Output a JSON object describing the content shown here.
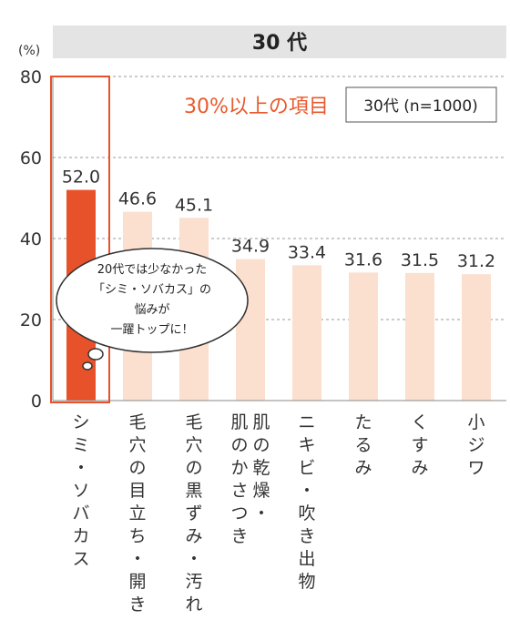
{
  "chart_data": {
    "type": "bar",
    "title": "30 代",
    "ylabel": "(%)",
    "ylim": [
      0,
      80
    ],
    "yticks": [
      0,
      20,
      40,
      60,
      80
    ],
    "grid": true,
    "categories": [
      "シミ・ソバカス",
      "毛穴の目立ち・開き",
      "毛穴の黒ずみ・汚れ",
      "肌の乾燥・肌のかさつき",
      "ニキビ・吹き出物",
      "たるみ",
      "くすみ",
      "小ジワ"
    ],
    "values": [
      52.0,
      46.6,
      45.1,
      34.9,
      33.4,
      31.6,
      31.5,
      31.2
    ],
    "value_labels": [
      "52.0",
      "46.6",
      "45.1",
      "34.9",
      "33.4",
      "31.6",
      "31.5",
      "31.2"
    ],
    "highlighted_index": 0,
    "legend": {
      "text": "30%以上の項目",
      "box": "30代 (n=1000)",
      "placement": "top-right"
    },
    "callout": {
      "lines": [
        "20代では少なかった",
        "「シミ・ソバカス」の",
        "悩みが",
        "一躍トップに！"
      ]
    },
    "colors": {
      "highlight": "#e8522a",
      "bar": "#fbdfcf",
      "title_band": "#e4e4e4",
      "accent_text": "#e85a2c"
    }
  }
}
